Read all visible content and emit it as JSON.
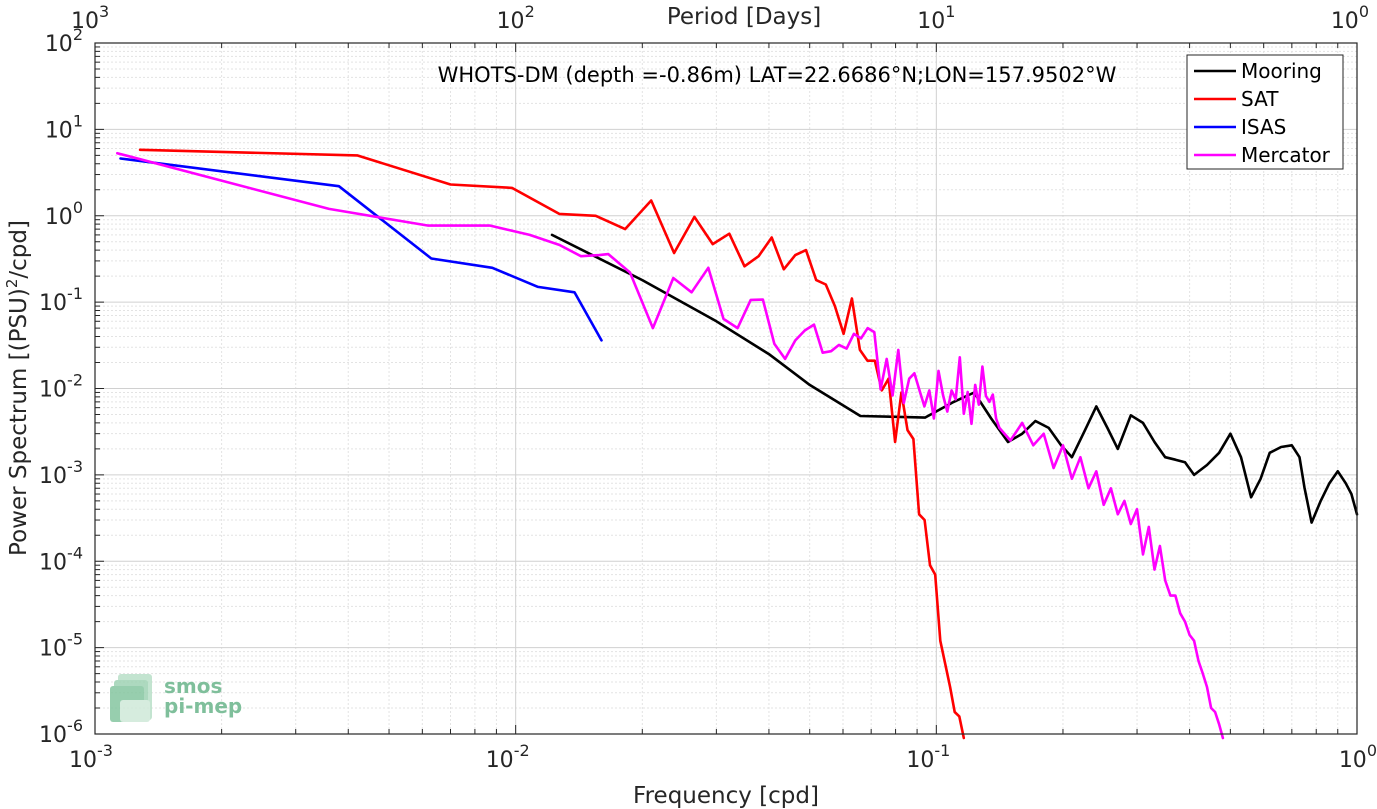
{
  "chart_data": {
    "type": "line",
    "title": "WHOTS-DM (depth =-0.86m) LAT=22.6686°N;LON=157.9502°W",
    "xlabel": "Frequency [cpd]",
    "ylabel_main": "Power Spectrum [(PSU)",
    "ylabel_sup": "2",
    "ylabel_tail": "/cpd]",
    "top_xlabel": "Period [Days]",
    "x_scale": "log",
    "y_scale": "log",
    "xlim": [
      0.001,
      1
    ],
    "ylim": [
      1e-06,
      100
    ],
    "grid": true,
    "legend_position": "top-right",
    "x_ticks": [
      {
        "v": 0.001,
        "base": "10",
        "exp": "-3"
      },
      {
        "v": 0.01,
        "base": "10",
        "exp": "-2"
      },
      {
        "v": 0.1,
        "base": "10",
        "exp": "-1"
      },
      {
        "v": 1,
        "base": "10",
        "exp": "0"
      }
    ],
    "y_ticks": [
      {
        "v": 100,
        "base": "10",
        "exp": "2"
      },
      {
        "v": 10,
        "base": "10",
        "exp": "1"
      },
      {
        "v": 1,
        "base": "10",
        "exp": "0"
      },
      {
        "v": 0.1,
        "base": "10",
        "exp": "-1"
      },
      {
        "v": 0.01,
        "base": "10",
        "exp": "-2"
      },
      {
        "v": 0.001,
        "base": "10",
        "exp": "-3"
      },
      {
        "v": 0.0001,
        "base": "10",
        "exp": "-4"
      },
      {
        "v": 1e-05,
        "base": "10",
        "exp": "-5"
      },
      {
        "v": 1e-06,
        "base": "10",
        "exp": "-6"
      }
    ],
    "top_ticks": [
      {
        "freq": 0.001,
        "base": "10",
        "exp": "3"
      },
      {
        "freq": 0.01,
        "base": "10",
        "exp": "2"
      },
      {
        "freq": 0.1,
        "base": "10",
        "exp": "1"
      },
      {
        "freq": 1,
        "base": "10",
        "exp": "0"
      }
    ],
    "series": [
      {
        "name": "Mooring",
        "color": "#000000",
        "points": [
          [
            0.0122,
            0.6
          ],
          [
            0.02,
            0.18
          ],
          [
            0.03,
            0.06
          ],
          [
            0.04,
            0.025
          ],
          [
            0.05,
            0.011
          ],
          [
            0.066,
            0.0048
          ],
          [
            0.08,
            0.0047
          ],
          [
            0.094,
            0.0046
          ],
          [
            0.11,
            0.007
          ],
          [
            0.123,
            0.009
          ],
          [
            0.135,
            0.0045
          ],
          [
            0.148,
            0.0024
          ],
          [
            0.16,
            0.003
          ],
          [
            0.172,
            0.0042
          ],
          [
            0.185,
            0.0035
          ],
          [
            0.198,
            0.0022
          ],
          [
            0.21,
            0.0016
          ],
          [
            0.225,
            0.0032
          ],
          [
            0.24,
            0.0062
          ],
          [
            0.255,
            0.0035
          ],
          [
            0.27,
            0.002
          ],
          [
            0.29,
            0.0049
          ],
          [
            0.31,
            0.004
          ],
          [
            0.33,
            0.0024
          ],
          [
            0.35,
            0.0016
          ],
          [
            0.37,
            0.0015
          ],
          [
            0.39,
            0.0014
          ],
          [
            0.41,
            0.001
          ],
          [
            0.44,
            0.0013
          ],
          [
            0.47,
            0.0018
          ],
          [
            0.5,
            0.003
          ],
          [
            0.53,
            0.0016
          ],
          [
            0.56,
            0.00055
          ],
          [
            0.59,
            0.0009
          ],
          [
            0.62,
            0.0018
          ],
          [
            0.66,
            0.0021
          ],
          [
            0.7,
            0.0022
          ],
          [
            0.73,
            0.0016
          ],
          [
            0.75,
            0.00072
          ],
          [
            0.78,
            0.00028
          ],
          [
            0.82,
            0.0005
          ],
          [
            0.86,
            0.0008
          ],
          [
            0.9,
            0.0011
          ],
          [
            0.94,
            0.0008
          ],
          [
            0.97,
            0.0006
          ],
          [
            1.0,
            0.00035
          ]
        ]
      },
      {
        "name": "SAT",
        "color": "#ff0000",
        "points": [
          [
            0.00128,
            5.8
          ],
          [
            0.0042,
            5.0
          ],
          [
            0.007,
            2.3
          ],
          [
            0.0098,
            2.1
          ],
          [
            0.0127,
            1.05
          ],
          [
            0.0155,
            1.0
          ],
          [
            0.0182,
            0.7
          ],
          [
            0.021,
            1.5
          ],
          [
            0.0238,
            0.37
          ],
          [
            0.0266,
            0.97
          ],
          [
            0.0294,
            0.47
          ],
          [
            0.0322,
            0.62
          ],
          [
            0.035,
            0.26
          ],
          [
            0.0378,
            0.34
          ],
          [
            0.0406,
            0.56
          ],
          [
            0.0434,
            0.24
          ],
          [
            0.0462,
            0.35
          ],
          [
            0.049,
            0.4
          ],
          [
            0.0518,
            0.18
          ],
          [
            0.0546,
            0.16
          ],
          [
            0.0574,
            0.09
          ],
          [
            0.0602,
            0.043
          ],
          [
            0.063,
            0.11
          ],
          [
            0.0658,
            0.028
          ],
          [
            0.0686,
            0.021
          ],
          [
            0.0714,
            0.021
          ],
          [
            0.0742,
            0.0095
          ],
          [
            0.077,
            0.013
          ],
          [
            0.0798,
            0.0024
          ],
          [
            0.0826,
            0.009
          ],
          [
            0.0854,
            0.0033
          ],
          [
            0.0882,
            0.0026
          ],
          [
            0.091,
            0.00035
          ],
          [
            0.0938,
            0.0003
          ],
          [
            0.0966,
            9e-05
          ],
          [
            0.0994,
            7e-05
          ],
          [
            0.1022,
            1.2e-05
          ],
          [
            0.105,
            6.5e-06
          ],
          [
            0.1078,
            3.5e-06
          ],
          [
            0.1106,
            1.8e-06
          ],
          [
            0.1134,
            1.6e-06
          ],
          [
            0.1162,
            9e-07
          ]
        ]
      },
      {
        "name": "ISAS",
        "color": "#0000ff",
        "points": [
          [
            0.00115,
            4.6
          ],
          [
            0.0038,
            2.2
          ],
          [
            0.0063,
            0.32
          ],
          [
            0.0088,
            0.25
          ],
          [
            0.0113,
            0.15
          ],
          [
            0.0138,
            0.13
          ],
          [
            0.016,
            0.036
          ]
        ]
      },
      {
        "name": "Mercator",
        "color": "#ff00ff",
        "points": [
          [
            0.00113,
            5.3
          ],
          [
            0.0036,
            1.2
          ],
          [
            0.0062,
            0.77
          ],
          [
            0.0087,
            0.77
          ],
          [
            0.0108,
            0.6
          ],
          [
            0.0127,
            0.46
          ],
          [
            0.0143,
            0.34
          ],
          [
            0.0158,
            0.35
          ],
          [
            0.0166,
            0.36
          ],
          [
            0.0187,
            0.22
          ],
          [
            0.0212,
            0.05
          ],
          [
            0.0237,
            0.19
          ],
          [
            0.0262,
            0.13
          ],
          [
            0.0287,
            0.25
          ],
          [
            0.0312,
            0.064
          ],
          [
            0.0337,
            0.05
          ],
          [
            0.0362,
            0.106
          ],
          [
            0.0387,
            0.107
          ],
          [
            0.0412,
            0.033
          ],
          [
            0.0437,
            0.022
          ],
          [
            0.0462,
            0.036
          ],
          [
            0.0487,
            0.047
          ],
          [
            0.0512,
            0.055
          ],
          [
            0.0537,
            0.026
          ],
          [
            0.0562,
            0.027
          ],
          [
            0.0587,
            0.032
          ],
          [
            0.0612,
            0.029
          ],
          [
            0.0637,
            0.043
          ],
          [
            0.0662,
            0.038
          ],
          [
            0.0687,
            0.05
          ],
          [
            0.0712,
            0.045
          ],
          [
            0.0737,
            0.0098
          ],
          [
            0.0762,
            0.022
          ],
          [
            0.0787,
            0.0083
          ],
          [
            0.0812,
            0.028
          ],
          [
            0.0837,
            0.0068
          ],
          [
            0.0862,
            0.013
          ],
          [
            0.0887,
            0.015
          ],
          [
            0.0912,
            0.0095
          ],
          [
            0.0937,
            0.0062
          ],
          [
            0.0962,
            0.0095
          ],
          [
            0.0987,
            0.0045
          ],
          [
            0.1012,
            0.016
          ],
          [
            0.1037,
            0.0084
          ],
          [
            0.1062,
            0.0054
          ],
          [
            0.1087,
            0.0095
          ],
          [
            0.1112,
            0.0075
          ],
          [
            0.1137,
            0.023
          ],
          [
            0.1162,
            0.0051
          ],
          [
            0.1187,
            0.0091
          ],
          [
            0.1212,
            0.0039
          ],
          [
            0.1237,
            0.011
          ],
          [
            0.1262,
            0.0065
          ],
          [
            0.1287,
            0.018
          ],
          [
            0.1312,
            0.0082
          ],
          [
            0.1337,
            0.007
          ],
          [
            0.1362,
            0.0085
          ],
          [
            0.1387,
            0.0045
          ],
          [
            0.1412,
            0.0035
          ],
          [
            0.15,
            0.0025
          ],
          [
            0.16,
            0.004
          ],
          [
            0.17,
            0.0022
          ],
          [
            0.18,
            0.003
          ],
          [
            0.19,
            0.0012
          ],
          [
            0.2,
            0.0022
          ],
          [
            0.21,
            0.0009
          ],
          [
            0.22,
            0.0016
          ],
          [
            0.23,
            0.0007
          ],
          [
            0.24,
            0.0011
          ],
          [
            0.25,
            0.00045
          ],
          [
            0.26,
            0.0007
          ],
          [
            0.27,
            0.00035
          ],
          [
            0.28,
            0.0005
          ],
          [
            0.29,
            0.00027
          ],
          [
            0.3,
            0.0004
          ],
          [
            0.31,
            0.00012
          ],
          [
            0.32,
            0.00025
          ],
          [
            0.33,
            8e-05
          ],
          [
            0.34,
            0.00015
          ],
          [
            0.35,
            6e-05
          ],
          [
            0.36,
            4e-05
          ],
          [
            0.37,
            4e-05
          ],
          [
            0.38,
            2.5e-05
          ],
          [
            0.39,
            2e-05
          ],
          [
            0.4,
            1.4e-05
          ],
          [
            0.41,
            1.2e-05
          ],
          [
            0.42,
            7e-06
          ],
          [
            0.43,
            5e-06
          ],
          [
            0.44,
            3.5e-06
          ],
          [
            0.45,
            2e-06
          ],
          [
            0.46,
            1.8e-06
          ],
          [
            0.47,
            1.3e-06
          ],
          [
            0.48,
            9e-07
          ]
        ]
      }
    ]
  },
  "logo": {
    "line1": "smos",
    "line2": "pi-mep"
  }
}
